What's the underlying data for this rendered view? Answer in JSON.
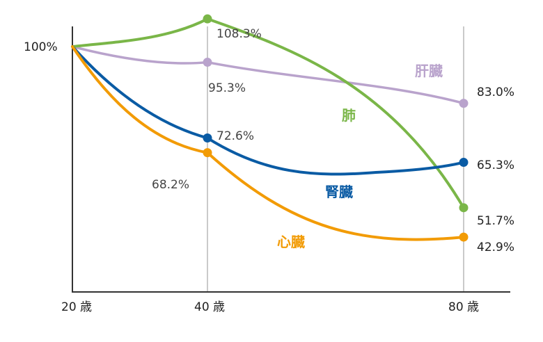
{
  "chart_data": {
    "type": "line",
    "title": "",
    "xlabel": "",
    "ylabel": "",
    "x_ticks": [
      "20 歳",
      "40 歳",
      "80 歳"
    ],
    "x_values": [
      20,
      40,
      80
    ],
    "y_tick_label": "100%",
    "grid": "vertical lines at 40 and 80",
    "series": [
      {
        "name": "肺",
        "color": "#7ab648",
        "points": [
          {
            "x": 20,
            "y": 100
          },
          {
            "x": 40,
            "y": 108.3,
            "label": "108.3%"
          },
          {
            "x": 80,
            "y": 51.7,
            "label": "51.7%"
          }
        ]
      },
      {
        "name": "肝臓",
        "color": "#b9a3cc",
        "points": [
          {
            "x": 20,
            "y": 100
          },
          {
            "x": 40,
            "y": 95.3,
            "label": "95.3%"
          },
          {
            "x": 80,
            "y": 83.0,
            "label": "83.0%"
          }
        ]
      },
      {
        "name": "腎臓",
        "color": "#0a5ba4",
        "points": [
          {
            "x": 20,
            "y": 100
          },
          {
            "x": 40,
            "y": 72.6,
            "label": "72.6%"
          },
          {
            "x": 80,
            "y": 65.3,
            "label": "65.3%"
          }
        ]
      },
      {
        "name": "心臓",
        "color": "#f29b05",
        "points": [
          {
            "x": 20,
            "y": 100
          },
          {
            "x": 40,
            "y": 68.2,
            "label": "68.2%"
          },
          {
            "x": 80,
            "y": 42.9,
            "label": "42.9%"
          }
        ]
      }
    ]
  }
}
